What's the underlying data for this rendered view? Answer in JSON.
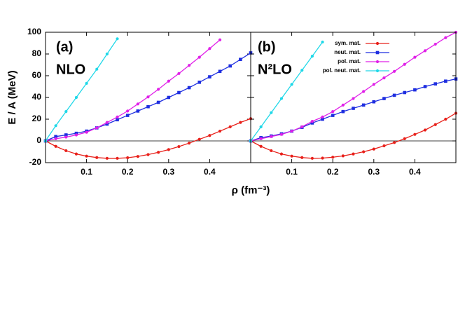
{
  "xlabel": "ρ  (fm⁻³)",
  "ylabel": "E / A  (MeV)",
  "chart_data": [
    {
      "type": "line",
      "annotations": [
        "(a)",
        "NLO"
      ],
      "x": [
        0,
        0.025,
        0.05,
        0.075,
        0.1,
        0.125,
        0.15,
        0.175,
        0.2,
        0.225,
        0.25,
        0.275,
        0.3,
        0.325,
        0.35,
        0.375,
        0.4,
        0.425,
        0.45,
        0.475,
        0.5
      ],
      "series": [
        {
          "color": "#e8201a",
          "marker": "circle",
          "values": [
            0,
            -5,
            -9,
            -12,
            -14,
            -15.3,
            -16,
            -16,
            -15.5,
            -14.3,
            -12.6,
            -10.5,
            -8,
            -5.2,
            -2,
            1.5,
            5,
            9,
            13,
            17,
            20.5
          ]
        },
        {
          "color": "#1e2ee0",
          "marker": "square",
          "values": [
            0,
            4,
            5.5,
            7,
            9,
            12,
            15.5,
            19.5,
            23.5,
            27.5,
            31.5,
            35.5,
            40,
            44.5,
            49,
            54,
            59,
            64,
            69,
            75,
            81
          ]
        },
        {
          "color": "#e020e8",
          "marker": "circle",
          "values": [
            0,
            2,
            3.5,
            5.5,
            8,
            12,
            17,
            22,
            27.5,
            34,
            40.5,
            47.5,
            55,
            62,
            69.5,
            77,
            85,
            93,
            null,
            null,
            null
          ]
        },
        {
          "color": "#20d8e8",
          "marker": "circle",
          "values": [
            0,
            14,
            27,
            40,
            53,
            66,
            80,
            94,
            null,
            null,
            null,
            null,
            null,
            null,
            null,
            null,
            null,
            null,
            null,
            null,
            null
          ]
        }
      ],
      "xlim": [
        0,
        0.5
      ],
      "xticks": [
        0.1,
        0.2,
        0.3,
        0.4
      ],
      "ylim": [
        -20,
        100
      ],
      "yticks": [
        -20,
        0,
        20,
        40,
        60,
        80,
        100
      ],
      "ytick_labels": true,
      "zero_line": true
    },
    {
      "type": "line",
      "annotations": [
        "(b)",
        "N²LO"
      ],
      "legend": "top-right",
      "x": [
        0,
        0.025,
        0.05,
        0.075,
        0.1,
        0.125,
        0.15,
        0.175,
        0.2,
        0.225,
        0.25,
        0.275,
        0.3,
        0.325,
        0.35,
        0.375,
        0.4,
        0.425,
        0.45,
        0.475,
        0.5
      ],
      "series": [
        {
          "name": "sym. mat.",
          "color": "#e8201a",
          "marker": "circle",
          "values": [
            0,
            -5,
            -9,
            -12,
            -14,
            -15.3,
            -16,
            -15.8,
            -15,
            -13.8,
            -12,
            -10,
            -7.5,
            -4.5,
            -1.5,
            2,
            6,
            10,
            15,
            20,
            25.5
          ]
        },
        {
          "name": "neut. mat.",
          "color": "#1e2ee0",
          "marker": "square",
          "values": [
            0,
            3,
            4.5,
            6.5,
            9,
            12.5,
            16.5,
            20,
            23.5,
            27,
            30,
            33,
            36,
            39,
            42,
            44.5,
            47,
            50,
            52.5,
            55,
            57
          ]
        },
        {
          "name": "pol. mat.",
          "color": "#e020e8",
          "marker": "circle",
          "values": [
            0,
            2,
            4,
            6,
            9,
            13,
            18,
            22,
            27,
            33,
            39,
            45.5,
            52,
            58,
            64,
            70.5,
            77,
            83,
            89,
            95,
            100
          ]
        },
        {
          "name": "pol. neut. mat.",
          "color": "#20d8e8",
          "marker": "circle",
          "values": [
            0,
            13,
            26,
            39,
            52,
            65,
            78,
            91,
            null,
            null,
            null,
            null,
            null,
            null,
            null,
            null,
            null,
            null,
            null,
            null,
            null
          ]
        }
      ],
      "xlim": [
        0,
        0.5
      ],
      "xticks": [
        0.1,
        0.2,
        0.3,
        0.4
      ],
      "ylim": [
        -20,
        100
      ],
      "yticks": [
        -20,
        0,
        20,
        40,
        60,
        80,
        100
      ],
      "ytick_labels": false,
      "zero_line": true
    }
  ]
}
